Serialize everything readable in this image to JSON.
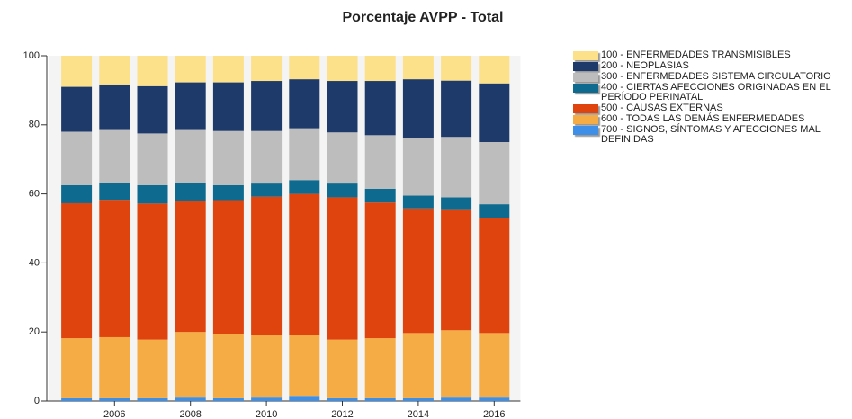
{
  "chart_data": {
    "type": "stacked_bar",
    "title": "Porcentaje AVPP - Total",
    "categories": [
      null,
      "2006",
      null,
      "2008",
      null,
      "2010",
      null,
      "2012",
      null,
      "2014",
      null,
      "2016"
    ],
    "ylim": [
      0,
      100
    ],
    "yticks": [
      0,
      20,
      40,
      60,
      80,
      100
    ],
    "grid": false,
    "legend": "right",
    "series": [
      {
        "name": "100 - ENFERMEDADES TRANSMISIBLES",
        "color": "#fde08a",
        "values": [
          9,
          8.3,
          8.8,
          7.7,
          7.7,
          7.3,
          6.8,
          7.3,
          7.3,
          6.8,
          7.2,
          8
        ]
      },
      {
        "name": "200 - NEOPLASIAS",
        "color": "#1e3a6a",
        "values": [
          13,
          13.2,
          13.7,
          13.8,
          14.1,
          14.5,
          14.2,
          14.9,
          15.7,
          16.9,
          16.3,
          17
        ]
      },
      {
        "name": "300 - ENFERMEDADES SISTEMA CIRCULATORIO",
        "color": "#bdbdbd",
        "values": [
          15.5,
          15.3,
          15,
          15.3,
          15.7,
          15.2,
          15,
          14.8,
          15.5,
          16.8,
          17.5,
          18
        ]
      },
      {
        "name": "400 - CIERTAS AFECCIONES ORIGINADAS EN EL PERÍODO PERINATAL",
        "color": "#0e6a8e",
        "values": [
          5.2,
          4.9,
          5.3,
          5.2,
          4.3,
          3.8,
          4,
          4,
          4,
          3.7,
          3.7,
          4
        ]
      },
      {
        "name": "500 - CAUSAS EXTERNAS",
        "color": "#e0440e",
        "values": [
          39.1,
          39.8,
          39.4,
          38,
          38.9,
          40.2,
          41,
          41.2,
          39.3,
          36.1,
          34.8,
          33.3
        ]
      },
      {
        "name": "600 - TODAS LAS DEMÁS ENFERMEDADES",
        "color": "#f5ac45",
        "values": [
          17.4,
          17.7,
          17,
          19,
          18.5,
          18,
          17.5,
          17,
          17.4,
          18.9,
          19.5,
          18.7
        ]
      },
      {
        "name": "700 - SIGNOS, SÍNTOMAS Y AFECCIONES MAL DEFINIDAS",
        "color": "#3d8fe8",
        "values": [
          0.8,
          0.8,
          0.8,
          1,
          0.8,
          1,
          1.5,
          0.8,
          0.8,
          0.8,
          1,
          1
        ]
      }
    ]
  }
}
